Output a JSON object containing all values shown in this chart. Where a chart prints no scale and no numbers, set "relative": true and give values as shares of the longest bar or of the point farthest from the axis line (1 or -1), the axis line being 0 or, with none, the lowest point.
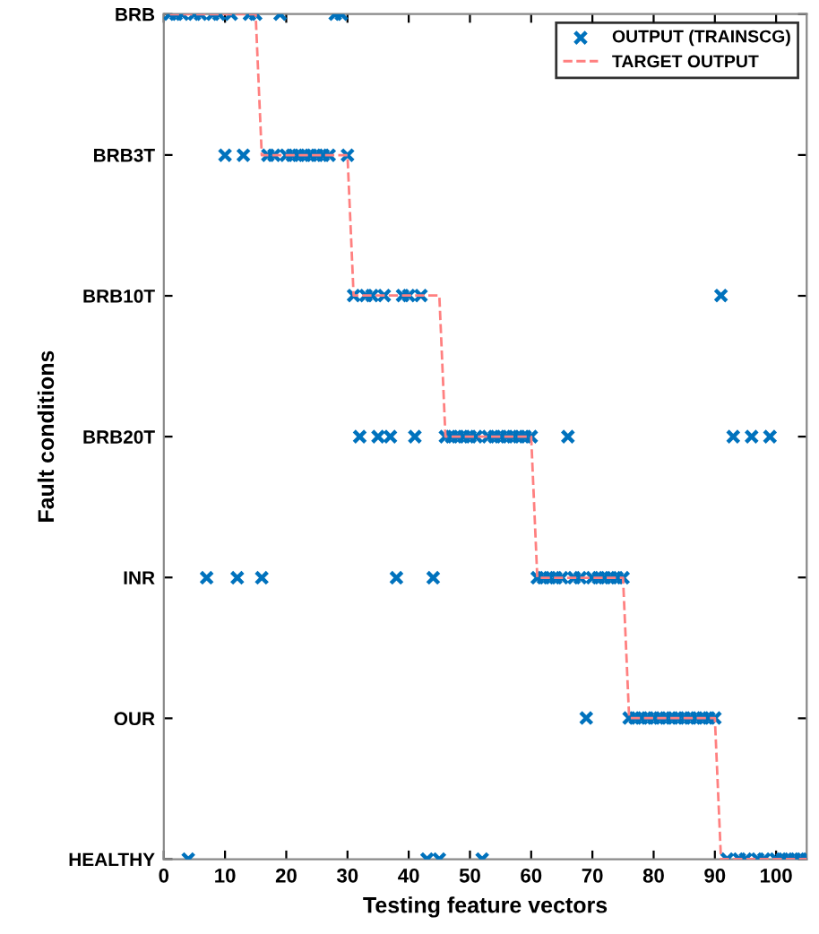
{
  "chart_data": {
    "type": "scatter",
    "relative": true,
    "xlabel": "Testing feature vectors",
    "ylabel": "Fault conditions",
    "xlim": [
      0,
      105
    ],
    "xticks": [
      0,
      10,
      20,
      30,
      40,
      50,
      60,
      70,
      80,
      90,
      100
    ],
    "y_categories": [
      "BRB",
      "BRB3T",
      "BRB10T",
      "BRB20T",
      "INR",
      "OUR",
      "HEALTHY"
    ],
    "grid": false,
    "legend": "top right",
    "series": [
      {
        "name": "OUTPUT (TRAINSCG)",
        "type": "scatter",
        "marker": "cross",
        "color": "#0072bd",
        "x": [
          1,
          2,
          3,
          4,
          5,
          6,
          7,
          8,
          9,
          10,
          11,
          12,
          13,
          14,
          15,
          16,
          17,
          18,
          19,
          20,
          21,
          22,
          23,
          24,
          25,
          26,
          27,
          28,
          29,
          30,
          31,
          32,
          33,
          34,
          35,
          36,
          37,
          38,
          39,
          40,
          41,
          42,
          43,
          44,
          45,
          46,
          47,
          48,
          49,
          50,
          51,
          52,
          53,
          54,
          55,
          56,
          57,
          58,
          59,
          60,
          61,
          62,
          63,
          64,
          65,
          66,
          67,
          68,
          69,
          70,
          71,
          72,
          73,
          74,
          75,
          76,
          77,
          78,
          79,
          80,
          81,
          82,
          83,
          84,
          85,
          86,
          87,
          88,
          89,
          90,
          91,
          92,
          93,
          94,
          95,
          96,
          97,
          98,
          99,
          100,
          101,
          102,
          103,
          104,
          105
        ],
        "values": [
          1,
          1,
          1,
          0,
          1,
          1,
          0.333,
          1,
          1,
          0.833,
          1,
          0.333,
          0.833,
          1,
          1,
          0.333,
          0.833,
          0.833,
          1,
          0.833,
          0.833,
          0.833,
          0.833,
          0.833,
          0.833,
          0.833,
          0.833,
          1,
          1,
          0.833,
          0.667,
          0.5,
          0.667,
          0.667,
          0.5,
          0.667,
          0.5,
          0.333,
          0.667,
          0.667,
          0.5,
          0.667,
          0,
          0.333,
          0,
          0.5,
          0.5,
          0.5,
          0.5,
          0.5,
          0.5,
          0,
          0.5,
          0.5,
          0.5,
          0.5,
          0.5,
          0.5,
          0.5,
          0.5,
          0.333,
          0.333,
          0.333,
          0.333,
          0.333,
          0.5,
          0.333,
          0.333,
          0.167,
          0.333,
          0.333,
          0.333,
          0.333,
          0.333,
          0.333,
          0.167,
          0.167,
          0.167,
          0.167,
          0.167,
          0.167,
          0.167,
          0.167,
          0.167,
          0.167,
          0.167,
          0.167,
          0.167,
          0.167,
          0.167,
          0.667,
          0,
          0.5,
          0,
          0,
          0.5,
          0,
          0,
          0.5,
          0,
          0,
          0,
          0,
          0,
          0
        ]
      },
      {
        "name": "TARGET OUTPUT",
        "type": "line",
        "line_style": "dashed",
        "marker": "none",
        "color": "#ff8080",
        "x": [
          1,
          15,
          16,
          30,
          31,
          45,
          46,
          60,
          61,
          75,
          76,
          90,
          91,
          105
        ],
        "values": [
          1,
          1,
          0.833,
          0.833,
          0.667,
          0.667,
          0.5,
          0.5,
          0.333,
          0.333,
          0.167,
          0.167,
          0,
          0
        ]
      }
    ]
  }
}
